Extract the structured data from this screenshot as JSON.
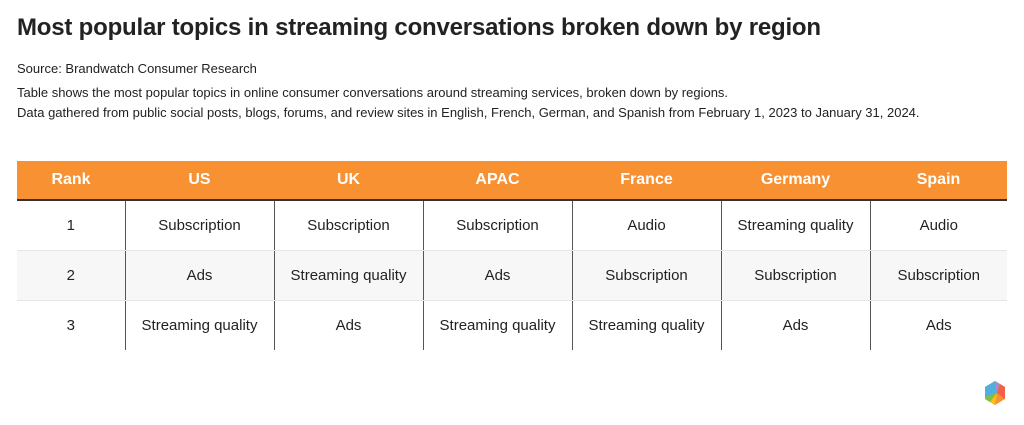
{
  "title": "Most popular topics in streaming conversations broken down by region",
  "source": "Source: Brandwatch Consumer Research",
  "description_lines": [
    "Table shows the most popular topics in online consumer conversations around streaming services, broken down by regions.",
    "Data gathered from public social posts, blogs, forums, and review sites in English, French, German, and Spanish from February 1, 2023 to January 31, 2024."
  ],
  "table": {
    "headers": [
      "Rank",
      "US",
      "UK",
      "APAC",
      "France",
      "Germany",
      "Spain"
    ],
    "rows": [
      [
        "1",
        "Subscription",
        "Subscription",
        "Subscription",
        "Audio",
        "Streaming quality",
        "Audio"
      ],
      [
        "2",
        "Ads",
        "Streaming quality",
        "Ads",
        "Subscription",
        "Subscription",
        "Subscription"
      ],
      [
        "3",
        "Streaming quality",
        "Ads",
        "Streaming quality",
        "Streaming quality",
        "Ads",
        "Ads"
      ]
    ]
  },
  "colors": {
    "header_bg": "#f79131",
    "alt_row_bg": "#f7f7f7"
  },
  "logo_icon": "hexagon-logo-icon"
}
